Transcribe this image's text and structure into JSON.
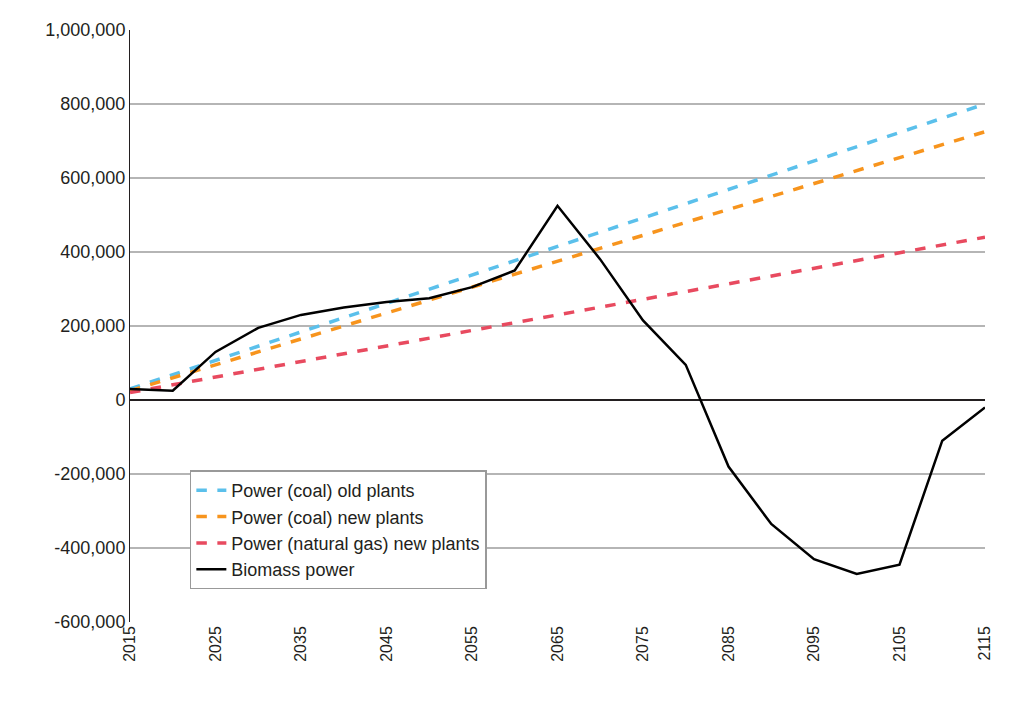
{
  "chart_data": {
    "type": "line",
    "xlim": [
      2015,
      2115
    ],
    "xticks": [
      2015,
      2025,
      2035,
      2045,
      2055,
      2065,
      2075,
      2085,
      2095,
      2105,
      2115
    ],
    "ylim": [
      -600000,
      1000000
    ],
    "yticks": [
      {
        "value": -600000,
        "label": "-600,000"
      },
      {
        "value": -400000,
        "label": "-400,000"
      },
      {
        "value": -200000,
        "label": "-200,000"
      },
      0,
      {
        "value": 200000,
        "label": "200,000"
      },
      {
        "value": 400000,
        "label": "400,000"
      },
      {
        "value": 600000,
        "label": "600,000"
      },
      {
        "value": 800000,
        "label": "800,000"
      },
      {
        "value": 1000000,
        "label": "1,000,000"
      }
    ],
    "grid": true,
    "legend": "lower left",
    "series": [
      {
        "name": "Power (coal) old plants",
        "color": "#5bc0eb",
        "line_style": "dashed",
        "x": [
          2015,
          2115
        ],
        "values": [
          30000,
          800000
        ]
      },
      {
        "name": "Power (coal) new plants",
        "color": "#f7941d",
        "line_style": "dashed",
        "x": [
          2015,
          2115
        ],
        "values": [
          25000,
          725000
        ]
      },
      {
        "name": "Power (natural gas) new plants",
        "color": "#e84a5f",
        "line_style": "dashed",
        "x": [
          2015,
          2115
        ],
        "values": [
          20000,
          440000
        ]
      },
      {
        "name": "Biomass power",
        "color": "#000000",
        "line_style": "solid",
        "x": [
          2015,
          2020,
          2025,
          2030,
          2035,
          2040,
          2045,
          2050,
          2055,
          2060,
          2065,
          2070,
          2075,
          2080,
          2085,
          2090,
          2095,
          2100,
          2105,
          2110,
          2115
        ],
        "values": [
          30000,
          25000,
          130000,
          195000,
          230000,
          250000,
          265000,
          275000,
          305000,
          350000,
          525000,
          380000,
          215000,
          95000,
          -180000,
          -335000,
          -430000,
          -470000,
          -445000,
          -110000,
          -20000
        ]
      }
    ]
  }
}
